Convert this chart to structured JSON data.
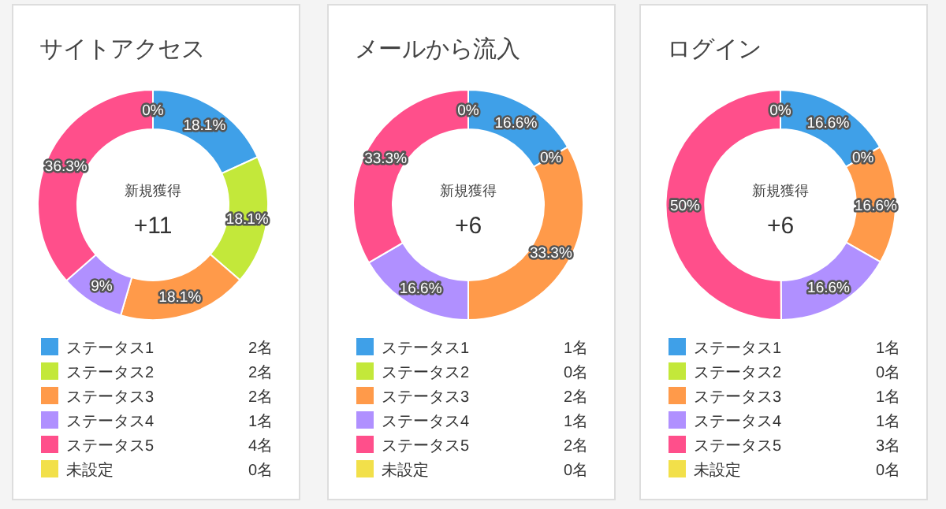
{
  "chart_data": [
    {
      "type": "donut",
      "title": "サイトアクセス",
      "categories": [
        "ステータス1",
        "ステータス2",
        "ステータス3",
        "ステータス4",
        "ステータス5",
        "未設定"
      ],
      "values": [
        18.1,
        18.1,
        18.1,
        9,
        36.3,
        0
      ],
      "colors": [
        "#3fa0e8",
        "#c3e83a",
        "#ff9a4a",
        "#b090ff",
        "#ff4f8b",
        "#f2e04a"
      ],
      "value_labels": [
        "18.1%",
        "18.1%",
        "18.1%",
        "9%",
        "36.3%",
        "0%"
      ],
      "annotations": [
        "新規獲得",
        "+11",
        "2名",
        "2名",
        "2名",
        "1名",
        "4名",
        "0名"
      ],
      "legend": "bottom"
    },
    {
      "type": "donut",
      "title": "メールから流入",
      "categories": [
        "ステータス1",
        "ステータス2",
        "ステータス3",
        "ステータス4",
        "ステータス5",
        "未設定"
      ],
      "values": [
        16.6,
        0,
        33.3,
        16.6,
        33.3,
        0
      ],
      "colors": [
        "#3fa0e8",
        "#c3e83a",
        "#ff9a4a",
        "#b090ff",
        "#ff4f8b",
        "#f2e04a"
      ],
      "value_labels": [
        "16.6%",
        "0%",
        "33.3%",
        "16.6%",
        "33.3%",
        "0%"
      ],
      "annotations": [
        "新規獲得",
        "+6",
        "1名",
        "0名",
        "2名",
        "1名",
        "2名",
        "0名"
      ],
      "legend": "bottom"
    },
    {
      "type": "donut",
      "title": "ログイン",
      "categories": [
        "ステータス1",
        "ステータス2",
        "ステータス3",
        "ステータス4",
        "ステータス5",
        "未設定"
      ],
      "values": [
        16.6,
        0,
        16.6,
        16.6,
        50,
        0
      ],
      "colors": [
        "#3fa0e8",
        "#c3e83a",
        "#ff9a4a",
        "#b090ff",
        "#ff4f8b",
        "#f2e04a"
      ],
      "value_labels": [
        "16.6%",
        "0%",
        "16.6%",
        "16.6%",
        "50%",
        "0%"
      ],
      "annotations": [
        "新規獲得",
        "+6",
        "1名",
        "0名",
        "1名",
        "1名",
        "3名",
        "0名"
      ],
      "legend": "bottom"
    }
  ]
}
